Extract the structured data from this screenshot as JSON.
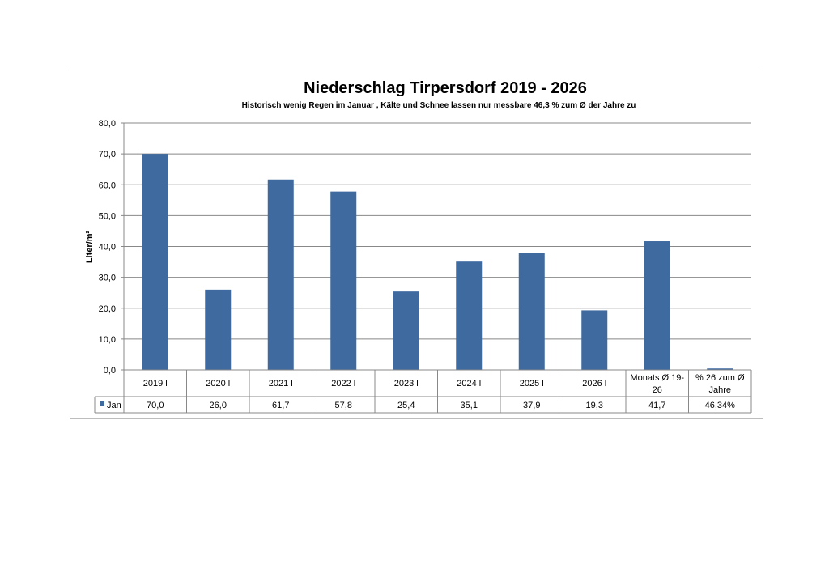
{
  "chart_data": {
    "type": "bar",
    "title": "Niederschlag Tirpersdorf  2019 - 2026",
    "subtitle": "Historisch wenig Regen im Januar  , Kälte und Schnee lassen  nur messbare 46,3 %  zum  Ø der Jahre zu",
    "xlabel": "",
    "ylabel": "Liter/m²",
    "ylim": [
      0,
      80
    ],
    "yticks": [
      "0,0",
      "10,0",
      "20,0",
      "30,0",
      "40,0",
      "50,0",
      "60,0",
      "70,0",
      "80,0"
    ],
    "grid": true,
    "legend": "data-table",
    "categories": [
      "2019 l",
      "2020 l",
      "2021 l",
      "2022 l",
      "2023 l",
      "2024 l",
      "2025 l",
      "2026 l",
      "Monats Ø 19-26",
      "% 26 zum Ø Jahre"
    ],
    "series": [
      {
        "name": "Jan",
        "values": [
          70.0,
          26.0,
          61.7,
          57.8,
          25.4,
          35.1,
          37.9,
          19.3,
          41.7,
          0.4634
        ],
        "labels": [
          "70,0",
          "26,0",
          "61,7",
          "57,8",
          "25,4",
          "35,1",
          "37,9",
          "19,3",
          "41,7",
          "46,34%"
        ],
        "color": "#3f6aa0"
      }
    ]
  }
}
